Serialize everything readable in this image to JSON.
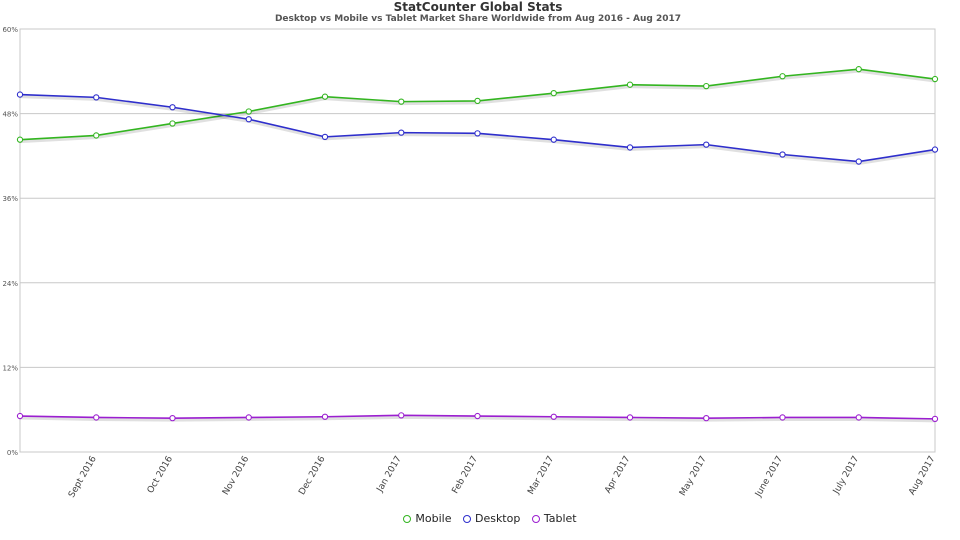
{
  "chart_data": {
    "type": "line",
    "title": "StatCounter Global Stats",
    "subtitle": "Desktop vs Mobile vs Tablet Market Share Worldwide from Aug 2016 - Aug 2017",
    "categories": [
      "Aug 2016",
      "Sept 2016",
      "Oct 2016",
      "Nov 2016",
      "Dec 2016",
      "Jan 2017",
      "Feb 2017",
      "Mar 2017",
      "Apr 2017",
      "May 2017",
      "June 2017",
      "July 2017",
      "Aug 2017"
    ],
    "x_tick_labels": [
      "Sept 2016",
      "Oct 2016",
      "Nov 2016",
      "Dec 2016",
      "Jan 2017",
      "Feb 2017",
      "Mar 2017",
      "Apr 2017",
      "May 2017",
      "June 2017",
      "July 2017",
      "Aug 2017"
    ],
    "y_tick_labels": [
      "0%",
      "12%",
      "24%",
      "36%",
      "48%",
      "60%"
    ],
    "ylim": [
      0,
      60
    ],
    "grid": true,
    "legend_position": "bottom",
    "series": [
      {
        "name": "Mobile",
        "color": "#33b520",
        "values": [
          44.3,
          44.9,
          46.6,
          48.3,
          50.4,
          49.7,
          49.8,
          50.9,
          52.1,
          51.9,
          53.3,
          54.3,
          52.9
        ]
      },
      {
        "name": "Desktop",
        "color": "#2e2ecc",
        "values": [
          50.7,
          50.3,
          48.9,
          47.2,
          44.7,
          45.3,
          45.2,
          44.3,
          43.2,
          43.6,
          42.2,
          41.2,
          42.9
        ]
      },
      {
        "name": "Tablet",
        "color": "#9b1ed0",
        "values": [
          5.1,
          4.9,
          4.8,
          4.9,
          5.0,
          5.2,
          5.1,
          5.0,
          4.9,
          4.8,
          4.9,
          4.9,
          4.7
        ]
      }
    ]
  }
}
